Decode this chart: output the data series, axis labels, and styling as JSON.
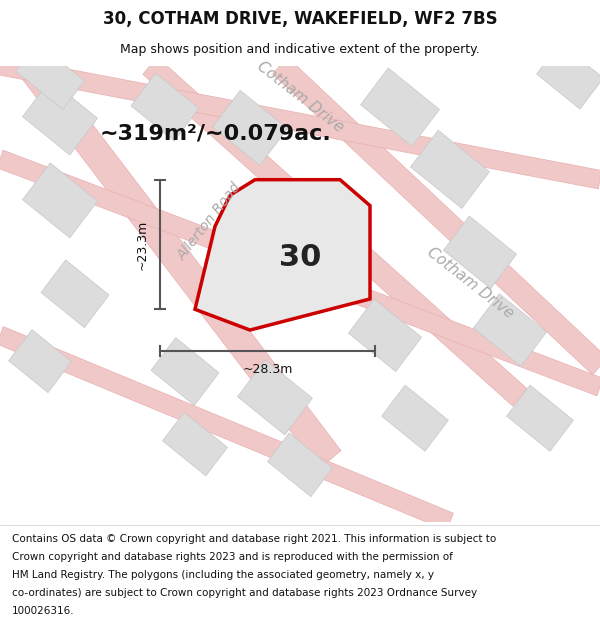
{
  "title": "30, COTHAM DRIVE, WAKEFIELD, WF2 7BS",
  "subtitle": "Map shows position and indicative extent of the property.",
  "area_text": "~319m²/~0.079ac.",
  "label_30": "30",
  "dim_width": "~28.3m",
  "dim_height": "~23.3m",
  "footer_lines": [
    "Contains OS data © Crown copyright and database right 2021. This information is subject to",
    "Crown copyright and database rights 2023 and is reproduced with the permission of",
    "HM Land Registry. The polygons (including the associated geometry, namely x, y",
    "co-ordinates) are subject to Crown copyright and database rights 2023 Ordnance Survey",
    "100026316."
  ],
  "map_bg": "#f5f4f4",
  "road_color_light": "#f0c8c8",
  "road_color_medium": "#e8b0b0",
  "block_color": "#dcdcdc",
  "block_edge": "#c8c8c8",
  "property_fill": "#e8e8e8",
  "property_edge": "#cc0000",
  "dim_line_color": "#555555",
  "street_label_color": "#aaaaaa",
  "title_color": "#111111",
  "footer_color": "#111111",
  "area_text_color": "#111111"
}
